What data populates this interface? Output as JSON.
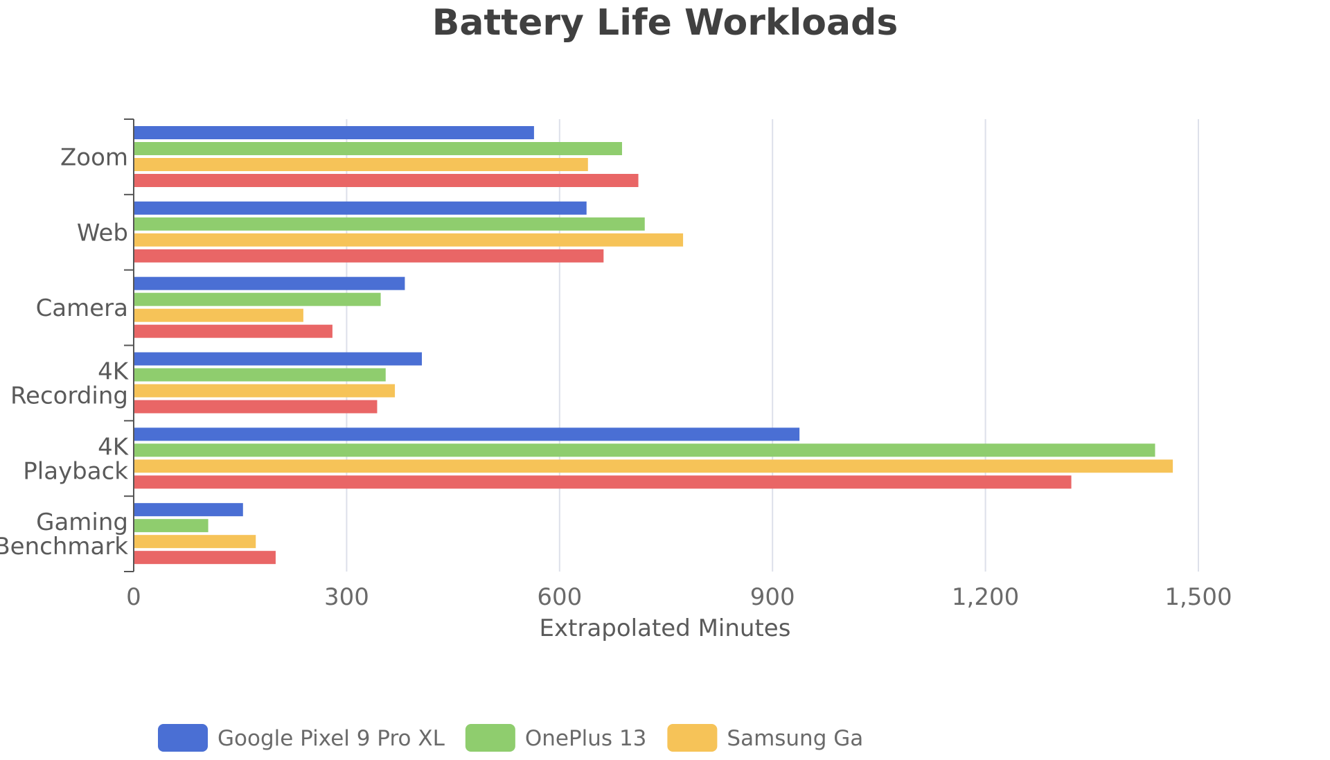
{
  "chart_data": {
    "type": "bar",
    "orientation": "horizontal",
    "title": "Battery Life Workloads",
    "xlabel": "Extrapolated Minutes",
    "ylabel": "",
    "xlim": [
      0,
      1650
    ],
    "xticks": [
      0,
      300,
      600,
      900,
      1200,
      1500
    ],
    "xtick_labels": [
      "0",
      "300",
      "600",
      "900",
      "1,200",
      "1,500"
    ],
    "grid": true,
    "legend_position": "bottom",
    "categories": [
      [
        "Zoom"
      ],
      [
        "Web"
      ],
      [
        "Camera"
      ],
      [
        "4K",
        "Recording"
      ],
      [
        "4K",
        "Playback"
      ],
      [
        "Gaming",
        "Benchmark"
      ]
    ],
    "series": [
      {
        "name": "Google Pixel 9 Pro XL",
        "color": "#4a6fd4",
        "values": [
          564,
          638,
          382,
          406,
          938,
          154
        ]
      },
      {
        "name": "OnePlus 13",
        "color": "#8fcd6e",
        "values": [
          688,
          720,
          348,
          355,
          1439,
          105
        ]
      },
      {
        "name": "Samsung Ga",
        "color": "#f6c358",
        "values": [
          640,
          774,
          239,
          368,
          1464,
          172
        ]
      },
      {
        "name": "",
        "color": "#e96666",
        "values": [
          711,
          662,
          280,
          343,
          1321,
          200
        ]
      }
    ]
  }
}
